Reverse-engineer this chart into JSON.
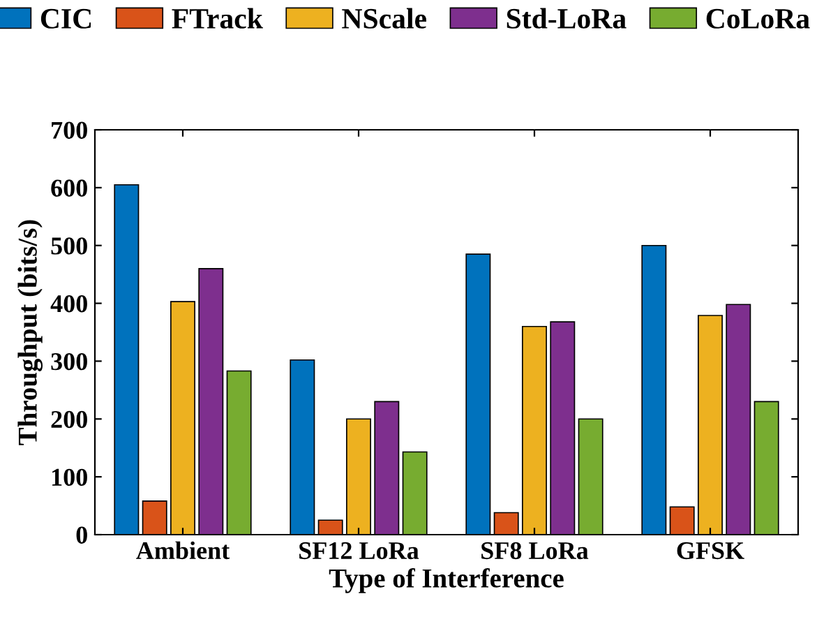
{
  "chart_data": {
    "type": "bar",
    "xlabel": "Type of Interference",
    "ylabel": "Throughput (bits/s)",
    "categories": [
      "Ambient",
      "SF12 LoRa",
      "SF8 LoRa",
      "GFSK"
    ],
    "series": [
      {
        "name": "CIC",
        "color": "#0072bd",
        "values": [
          605,
          302,
          485,
          500
        ]
      },
      {
        "name": "FTrack",
        "color": "#d95319",
        "values": [
          58,
          25,
          38,
          48
        ]
      },
      {
        "name": "NScale",
        "color": "#edb120",
        "values": [
          403,
          200,
          360,
          379
        ]
      },
      {
        "name": "Std-LoRa",
        "color": "#7e2f8e",
        "values": [
          460,
          230,
          368,
          398
        ]
      },
      {
        "name": "CoLoRa",
        "color": "#77ac30",
        "values": [
          283,
          143,
          200,
          230
        ]
      }
    ],
    "ylim": [
      0,
      700
    ],
    "yticks": [
      0,
      100,
      200,
      300,
      400,
      500,
      600,
      700
    ],
    "grid": false,
    "legend": "top"
  }
}
